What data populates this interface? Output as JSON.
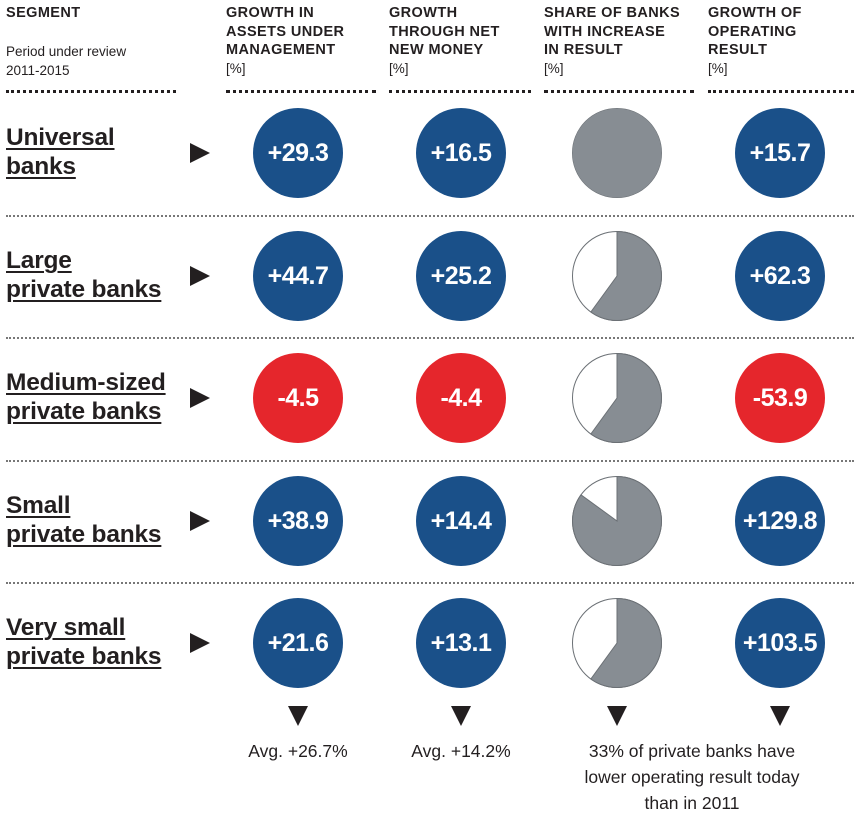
{
  "headers": {
    "segment": "SEGMENT",
    "period": "Period under review\n2011-2015",
    "columns": [
      {
        "label": "GROWTH IN\nASSETS UNDER\nMANAGEMENT",
        "unit": "[%]"
      },
      {
        "label": "GROWTH\nTHROUGH NET\nNEW MONEY",
        "unit": "[%]"
      },
      {
        "label": "SHARE OF BANKS\nWITH INCREASE\nIN RESULT",
        "unit": "[%]"
      },
      {
        "label": "GROWTH OF\nOPERATING\nRESULT",
        "unit": "[%]"
      }
    ]
  },
  "colors": {
    "positive": "#1a5089",
    "negative": "#e5262c",
    "pie_fill": "#878d93",
    "pie_stroke": "#6b7075"
  },
  "chart_data": {
    "type": "table",
    "segments": [
      "Universal\nbanks",
      "Large\nprivate banks",
      "Medium-sized\nprivate banks",
      "Small\nprivate banks",
      "Very small\nprivate banks"
    ],
    "aum_growth": [
      "+29.3",
      "+44.7",
      "-4.5",
      "+38.9",
      "+21.6"
    ],
    "nnm_growth": [
      "+16.5",
      "+25.2",
      "-4.4",
      "+14.4",
      "+13.1"
    ],
    "share_increase_fraction": [
      1.0,
      0.6,
      0.6,
      0.85,
      0.6
    ],
    "operating_result_growth": [
      "+15.7",
      "+62.3",
      "-53.9",
      "+129.8",
      "+103.5"
    ]
  },
  "footer": {
    "aum_avg": "Avg. +26.7%",
    "nnm_avg": "Avg. +14.2%",
    "share_note": "33% of private banks have\nlower operating result today\nthan in 2011"
  }
}
